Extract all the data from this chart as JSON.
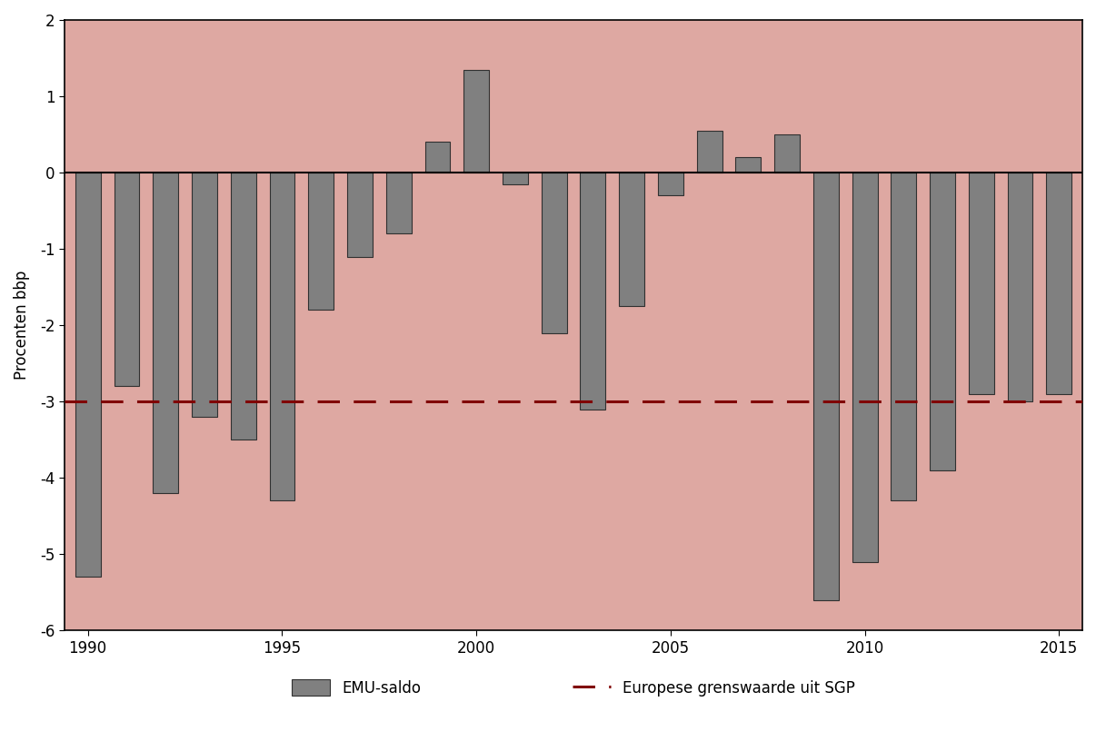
{
  "years": [
    1990,
    1991,
    1992,
    1993,
    1994,
    1995,
    1996,
    1997,
    1998,
    1999,
    2000,
    2001,
    2002,
    2003,
    2004,
    2005,
    2006,
    2007,
    2008,
    2009,
    2010,
    2011,
    2012,
    2013,
    2014,
    2015
  ],
  "values": [
    -5.3,
    -2.8,
    -4.2,
    -3.2,
    -3.5,
    -4.3,
    -1.8,
    -1.1,
    -0.8,
    0.4,
    1.35,
    -0.15,
    -2.1,
    -3.1,
    -1.75,
    -0.3,
    0.55,
    0.2,
    0.5,
    -5.6,
    -5.1,
    -4.3,
    -3.9,
    -2.9,
    -3.0,
    -2.9
  ],
  "bar_color": "#808080",
  "bar_edge_color": "#303030",
  "background_color": "#dea8a2",
  "dashed_line_value": -3.0,
  "dashed_line_color": "#800000",
  "ylim": [
    -6,
    2
  ],
  "yticks": [
    -6,
    -5,
    -4,
    -3,
    -2,
    -1,
    0,
    1,
    2
  ],
  "xlabel": "",
  "ylabel": "Procenten bbp",
  "legend_bar_label": "EMU-saldo",
  "legend_line_label": "Europese grenswaarde uit SGP",
  "bar_width": 0.65,
  "spine_color": "#000000",
  "zero_line_color": "#000000",
  "xlim_left": 1989.4,
  "xlim_right": 2015.6
}
